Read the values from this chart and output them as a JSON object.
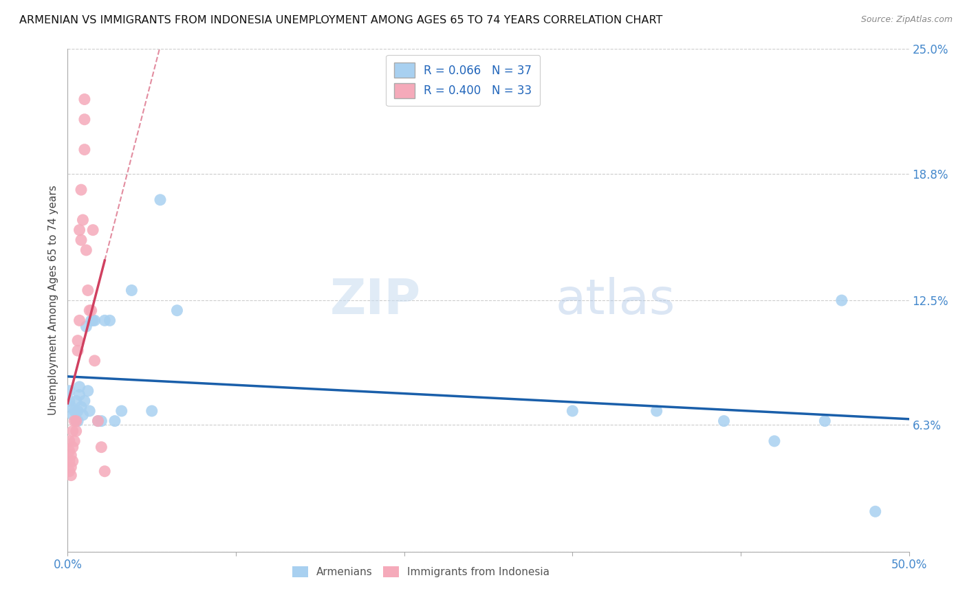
{
  "title": "ARMENIAN VS IMMIGRANTS FROM INDONESIA UNEMPLOYMENT AMONG AGES 65 TO 74 YEARS CORRELATION CHART",
  "source": "Source: ZipAtlas.com",
  "ylabel": "Unemployment Among Ages 65 to 74 years",
  "xlim": [
    0.0,
    0.5
  ],
  "ylim": [
    0.0,
    0.25
  ],
  "R_armenian": 0.066,
  "N_armenian": 37,
  "R_indonesia": 0.4,
  "N_indonesia": 33,
  "color_armenian": "#A8D0F0",
  "color_indonesia": "#F5AABA",
  "line_color_armenian": "#1A5FAA",
  "line_color_indonesia": "#D04060",
  "watermark_zip": "ZIP",
  "watermark_atlas": "atlas",
  "armenian_x": [
    0.001,
    0.001,
    0.002,
    0.003,
    0.004,
    0.005,
    0.005,
    0.006,
    0.006,
    0.007,
    0.007,
    0.008,
    0.009,
    0.01,
    0.011,
    0.012,
    0.013,
    0.014,
    0.015,
    0.016,
    0.018,
    0.02,
    0.022,
    0.025,
    0.028,
    0.032,
    0.038,
    0.05,
    0.055,
    0.065,
    0.3,
    0.35,
    0.39,
    0.42,
    0.45,
    0.46,
    0.48
  ],
  "armenian_y": [
    0.075,
    0.08,
    0.072,
    0.068,
    0.07,
    0.075,
    0.065,
    0.07,
    0.065,
    0.078,
    0.082,
    0.072,
    0.068,
    0.075,
    0.112,
    0.08,
    0.07,
    0.115,
    0.115,
    0.115,
    0.065,
    0.065,
    0.115,
    0.115,
    0.065,
    0.07,
    0.13,
    0.07,
    0.175,
    0.12,
    0.07,
    0.07,
    0.065,
    0.055,
    0.065,
    0.125,
    0.02
  ],
  "indonesia_x": [
    0.001,
    0.001,
    0.001,
    0.001,
    0.002,
    0.002,
    0.002,
    0.003,
    0.003,
    0.003,
    0.004,
    0.004,
    0.005,
    0.005,
    0.006,
    0.006,
    0.007,
    0.007,
    0.008,
    0.008,
    0.009,
    0.01,
    0.01,
    0.01,
    0.011,
    0.012,
    0.013,
    0.014,
    0.015,
    0.016,
    0.018,
    0.02,
    0.022
  ],
  "indonesia_y": [
    0.055,
    0.05,
    0.045,
    0.04,
    0.042,
    0.038,
    0.048,
    0.045,
    0.052,
    0.06,
    0.055,
    0.065,
    0.065,
    0.06,
    0.1,
    0.105,
    0.115,
    0.16,
    0.155,
    0.18,
    0.165,
    0.215,
    0.225,
    0.2,
    0.15,
    0.13,
    0.12,
    0.12,
    0.16,
    0.095,
    0.065,
    0.052,
    0.04
  ]
}
